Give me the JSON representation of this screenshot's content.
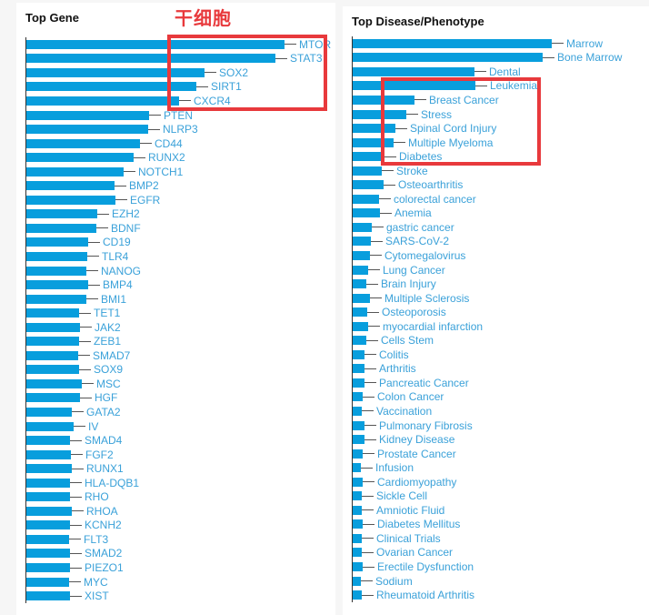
{
  "page": {
    "colors": {
      "background": "#f6f6f6",
      "panel": "#ffffff",
      "bar": "#089edd",
      "label": "#3aa1d9",
      "axis": "#333333",
      "annotation_red": "#e8393c",
      "title_text": "#111111"
    }
  },
  "annotations": {
    "stem_cell_label": {
      "text": "干细胞",
      "color": "#e8393c"
    },
    "gene_highlight_box": {
      "highlighted_genes": [
        "MTOR",
        "STAT3",
        "SOX2",
        "SIRT1",
        "CXCR4"
      ]
    },
    "disease_highlight_box": {
      "highlighted_diseases": [
        "Leukemia",
        "Breast Cancer",
        "Stress",
        "Spinal Cord Injury",
        "Multiple Myeloma",
        "Diabetes"
      ]
    }
  },
  "chart_data": [
    {
      "id": "top-gene",
      "type": "bar",
      "orientation": "horizontal",
      "title": "Top Gene",
      "xlabel": "",
      "ylabel": "",
      "grid": false,
      "legend": false,
      "axis_numeric_labels_visible": false,
      "value_unit": "estimated_px",
      "categories": [
        "MTOR",
        "STAT3",
        "SOX2",
        "SIRT1",
        "CXCR4",
        "PTEN",
        "NLRP3",
        "CD44",
        "RUNX2",
        "NOTCH1",
        "BMP2",
        "EGFR",
        "EZH2",
        "BDNF",
        "CD19",
        "TLR4",
        "NANOG",
        "BMP4",
        "BMI1",
        "TET1",
        "JAK2",
        "ZEB1",
        "SMAD7",
        "SOX9",
        "MSC",
        "HGF",
        "GATA2",
        "IV",
        "SMAD4",
        "FGF2",
        "RUNX1",
        "HLA-DQB1",
        "RHO",
        "RHOA",
        "KCNH2",
        "FLT3",
        "SMAD2",
        "PIEZO1",
        "MYC",
        "XIST"
      ],
      "values": [
        284,
        274,
        196,
        187,
        168,
        135,
        134,
        125,
        118,
        107,
        97,
        98,
        78,
        77,
        68,
        67,
        66,
        68,
        66,
        58,
        59,
        58,
        57,
        58,
        61,
        59,
        50,
        52,
        48,
        49,
        50,
        48,
        48,
        50,
        48,
        47,
        48,
        48,
        47,
        48
      ]
    },
    {
      "id": "top-disease",
      "type": "bar",
      "orientation": "horizontal",
      "title": "Top Disease/Phenotype",
      "xlabel": "",
      "ylabel": "",
      "grid": false,
      "legend": false,
      "axis_numeric_labels_visible": false,
      "value_unit": "estimated_px",
      "categories": [
        "Marrow",
        "Bone Marrow",
        "Dental",
        "Leukemia",
        "Breast Cancer",
        "Stress",
        "Spinal Cord Injury",
        "Multiple Myeloma",
        "Diabetes",
        "Stroke",
        "Osteoarthritis",
        "colorectal cancer",
        "Anemia",
        "gastric cancer",
        "SARS-CoV-2",
        "Cytomegalovirus",
        "Lung Cancer",
        "Brain Injury",
        "Multiple Sclerosis",
        "Osteoporosis",
        "myocardial infarction",
        "Cells Stem",
        "Colitis",
        "Arthritis",
        "Pancreatic Cancer",
        "Colon Cancer",
        "Vaccination",
        "Pulmonary Fibrosis",
        "Kidney Disease",
        "Prostate Cancer",
        "Infusion",
        "Cardiomyopathy",
        "Sickle Cell",
        "Amniotic Fluid",
        "Diabetes Mellitus",
        "Clinical Trials",
        "Ovarian Cancer",
        "Erectile Dysfunction",
        "Sodium",
        "Rheumatoid Arthritis"
      ],
      "values": [
        219,
        209,
        134,
        135,
        68,
        59,
        47,
        45,
        35,
        32,
        34,
        29,
        30,
        21,
        20,
        19,
        17,
        15,
        19,
        16,
        17,
        15,
        13,
        13,
        13,
        11,
        10,
        13,
        13,
        11,
        9,
        11,
        10,
        10,
        11,
        10,
        10,
        11,
        9,
        10
      ]
    }
  ]
}
